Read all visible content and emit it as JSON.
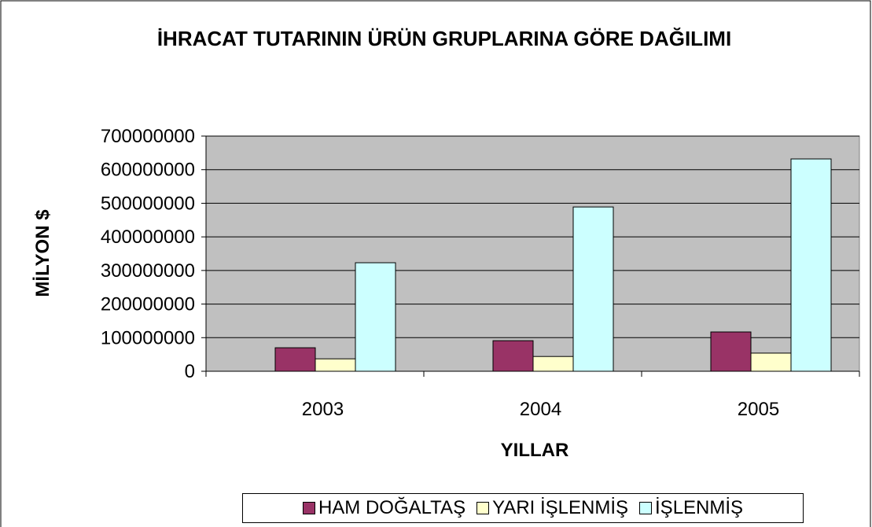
{
  "chart_data": {
    "type": "bar",
    "title": "İHRACAT TUTARININ ÜRÜN GRUPLARINA GÖRE DAĞILIMI",
    "xlabel": "YILLAR",
    "ylabel": "MİLYON $",
    "categories": [
      "2003",
      "2004",
      "2005"
    ],
    "series": [
      {
        "name": "HAM DOĞALTAŞ",
        "color": "#993366",
        "values": [
          70000000,
          91000000,
          117000000
        ]
      },
      {
        "name": "YARI İŞLENMİŞ",
        "color": "#ffffcc",
        "values": [
          37000000,
          44000000,
          54000000
        ]
      },
      {
        "name": "İŞLENMİŞ",
        "color": "#ccffff",
        "values": [
          323000000,
          489000000,
          632000000
        ]
      }
    ],
    "ylim": [
      0,
      700000000
    ],
    "yticks": [
      0,
      100000000,
      200000000,
      300000000,
      400000000,
      500000000,
      600000000,
      700000000
    ],
    "grid": true,
    "legend": "bottom"
  }
}
